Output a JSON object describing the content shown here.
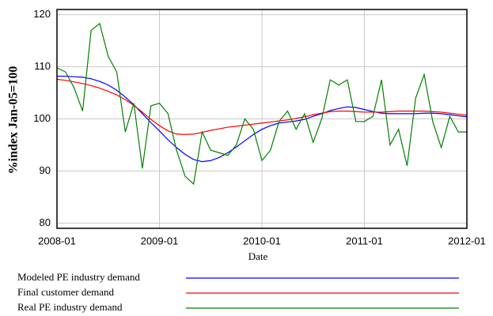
{
  "chart_data": {
    "type": "line",
    "y_label": "%index Jan-05=100",
    "x_label": "Date",
    "x": [
      "2008-01",
      "2008-02",
      "2008-03",
      "2008-04",
      "2008-05",
      "2008-06",
      "2008-07",
      "2008-08",
      "2008-09",
      "2008-10",
      "2008-11",
      "2008-12",
      "2009-01",
      "2009-02",
      "2009-03",
      "2009-04",
      "2009-05",
      "2009-06",
      "2009-07",
      "2009-08",
      "2009-09",
      "2009-10",
      "2009-11",
      "2009-12",
      "2010-01",
      "2010-02",
      "2010-03",
      "2010-04",
      "2010-05",
      "2010-06",
      "2010-07",
      "2010-08",
      "2010-09",
      "2010-10",
      "2010-11",
      "2010-12",
      "2011-01",
      "2011-02",
      "2011-03",
      "2011-04",
      "2011-05",
      "2011-06",
      "2011-07",
      "2011-08",
      "2011-09",
      "2011-10",
      "2011-11",
      "2011-12",
      "2012-01"
    ],
    "xlim": [
      "2008-01",
      "2012-01"
    ],
    "xticks": [
      "2008-01",
      "2009-01",
      "2010-01",
      "2011-01",
      "2012-01"
    ],
    "ylim": [
      79,
      121
    ],
    "yticks": [
      80,
      90,
      100,
      110,
      120
    ],
    "grid": true,
    "series": [
      {
        "name": "Modeled PE industry demand",
        "color": "#0000ff",
        "values": [
          108.2,
          108.2,
          108.1,
          108,
          107.7,
          107.2,
          106.5,
          105.5,
          104.2,
          102.7,
          101,
          99.3,
          97.7,
          96,
          94.5,
          93.2,
          92.2,
          91.8,
          92,
          92.6,
          93.5,
          94.6,
          95.8,
          97,
          98,
          98.7,
          99.2,
          99.4,
          99.6,
          99.9,
          100.5,
          101,
          101.6,
          102,
          102.3,
          102.2,
          101.8,
          101.4,
          101.1,
          101,
          101,
          101,
          101,
          101.1,
          101.1,
          101,
          100.8,
          100.6,
          100.4
        ]
      },
      {
        "name": "Final customer demand",
        "color": "#ff0000",
        "values": [
          107.6,
          107.4,
          107.1,
          106.8,
          106.4,
          105.9,
          105.3,
          104.6,
          103.7,
          102.6,
          101.3,
          99.9,
          98.7,
          97.7,
          97.1,
          97,
          97.1,
          97.4,
          97.8,
          98.1,
          98.4,
          98.6,
          98.8,
          99,
          99.2,
          99.4,
          99.6,
          99.8,
          100.1,
          100.4,
          100.8,
          101.1,
          101.4,
          101.5,
          101.5,
          101.4,
          101.3,
          101.3,
          101.3,
          101.4,
          101.5,
          101.5,
          101.5,
          101.5,
          101.4,
          101.3,
          101.1,
          100.9,
          100.7
        ]
      },
      {
        "name": "Real PE industry demand",
        "color": "#008000",
        "values": [
          109.8,
          109,
          106,
          101.5,
          117,
          118.3,
          112,
          109,
          97.5,
          103,
          90.5,
          102.5,
          103,
          101,
          94,
          89,
          87.5,
          97.5,
          94,
          93.5,
          93,
          95,
          100,
          98,
          92,
          94,
          99.5,
          101.5,
          98,
          101,
          95.5,
          100,
          107.5,
          106.5,
          107.5,
          99.5,
          99.5,
          100.5,
          107.5,
          95,
          98,
          91,
          104,
          108.5,
          99.5,
          94.5,
          100.5,
          97.5,
          97.5
        ]
      }
    ]
  }
}
